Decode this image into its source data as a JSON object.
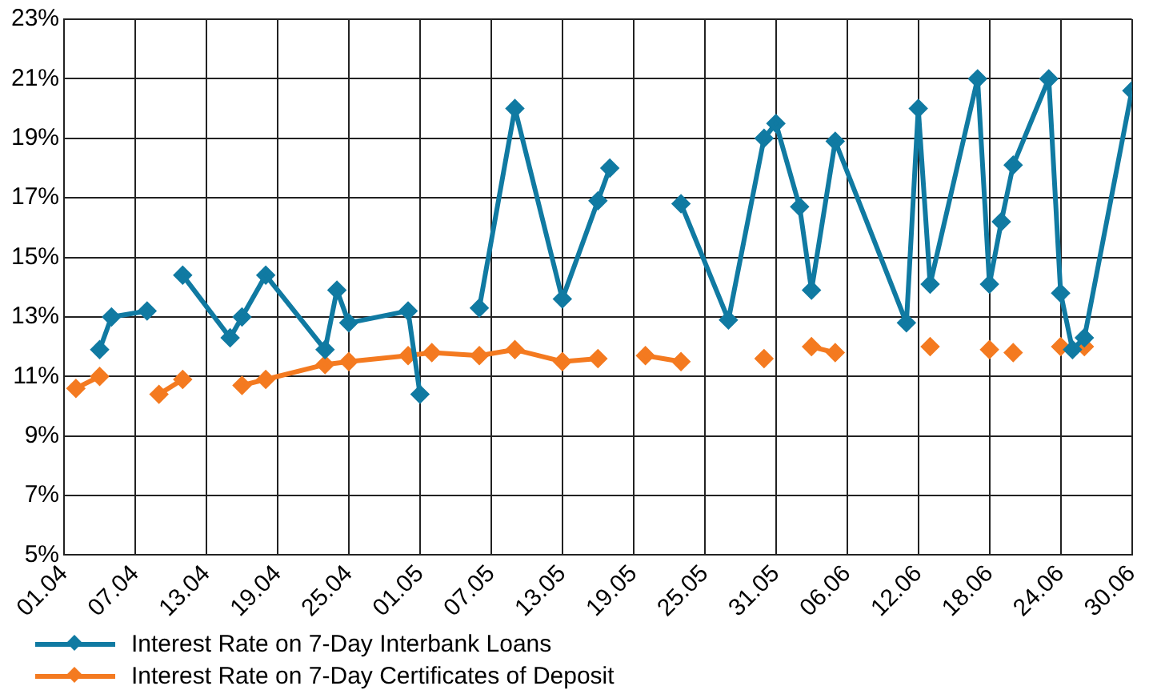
{
  "chart_data": {
    "type": "line",
    "xlim": [
      "--04-01",
      "--06-30"
    ],
    "xticks": [
      {
        "value": "--04-01",
        "label": "01.04"
      },
      {
        "value": "--04-07",
        "label": "07.04"
      },
      {
        "value": "--04-13",
        "label": "13.04"
      },
      {
        "value": "--04-19",
        "label": "19.04"
      },
      {
        "value": "--04-25",
        "label": "25.04"
      },
      {
        "value": "--05-01",
        "label": "01.05"
      },
      {
        "value": "--05-07",
        "label": "07.05"
      },
      {
        "value": "--05-13",
        "label": "13.05"
      },
      {
        "value": "--05-19",
        "label": "19.05"
      },
      {
        "value": "--05-25",
        "label": "25.05"
      },
      {
        "value": "--05-31",
        "label": "31.05"
      },
      {
        "value": "--06-06",
        "label": "06.06"
      },
      {
        "value": "--06-12",
        "label": "12.06"
      },
      {
        "value": "--06-18",
        "label": "18.06"
      },
      {
        "value": "--06-24",
        "label": "24.06"
      },
      {
        "value": "--06-30",
        "label": "30.06"
      }
    ],
    "ylim": [
      5,
      23
    ],
    "yticks": [
      {
        "value": 5,
        "label": "5%"
      },
      {
        "value": 7,
        "label": "7%"
      },
      {
        "value": 9,
        "label": "9%"
      },
      {
        "value": 11,
        "label": "11%"
      },
      {
        "value": 13,
        "label": "13%"
      },
      {
        "value": 15,
        "label": "15%"
      },
      {
        "value": 17,
        "label": "17%"
      },
      {
        "value": 19,
        "label": "19%"
      },
      {
        "value": 21,
        "label": "21%"
      },
      {
        "value": 23,
        "label": "23%"
      }
    ],
    "grid": true,
    "legend": "bottom left",
    "marker": "diamond",
    "line_style": "solid",
    "series": [
      {
        "name": "Interest Rate on 7-Day Interbank Loans",
        "color": "#107aa2",
        "x": [
          "--04-04",
          "--04-05",
          "--04-08",
          "--04-09",
          "--04-11",
          "--04-15",
          "--04-16",
          "--04-18",
          "--04-23",
          "--04-24",
          "--04-25",
          "--04-30",
          "--05-01",
          "--05-03",
          "--05-06",
          "--05-09",
          "--05-13",
          "--05-16",
          "--05-17",
          "--05-20",
          "--05-23",
          "--05-27",
          "--05-30",
          "--05-31",
          "--06-02",
          "--06-03",
          "--06-05",
          "--06-11",
          "--06-12",
          "--06-13",
          "--06-17",
          "--06-18",
          "--06-19",
          "--06-20",
          "--06-23",
          "--06-24",
          "--06-25",
          "--06-26",
          "--06-30"
        ],
        "values": [
          11.9,
          13.0,
          13.2,
          null,
          14.4,
          12.3,
          13.0,
          14.4,
          11.9,
          13.9,
          12.8,
          13.2,
          10.4,
          null,
          13.3,
          20.0,
          13.6,
          16.9,
          18.0,
          null,
          16.8,
          12.9,
          19.0,
          19.5,
          16.7,
          13.9,
          18.9,
          12.8,
          20.0,
          14.1,
          21.0,
          14.1,
          16.2,
          18.1,
          21.0,
          13.8,
          11.9,
          12.3,
          20.6
        ]
      },
      {
        "name": "Interest Rate on 7-Day Certificates of Deposit",
        "color": "#f47a20",
        "x": [
          "--04-02",
          "--04-04",
          "--04-06",
          "--04-09",
          "--04-11",
          "--04-13",
          "--04-16",
          "--04-18",
          "--04-23",
          "--04-25",
          "--04-30",
          "--05-02",
          "--05-06",
          "--05-09",
          "--05-13",
          "--05-16",
          "--05-18",
          "--05-20",
          "--05-23",
          "--05-26",
          "--05-30",
          "--06-01",
          "--06-03",
          "--06-05",
          "--06-08",
          "--06-13",
          "--06-15",
          "--06-18",
          "--06-19",
          "--06-20",
          "--06-22",
          "--06-24",
          "--06-25",
          "--06-26"
        ],
        "values": [
          10.6,
          11.0,
          null,
          10.4,
          10.9,
          null,
          10.7,
          10.9,
          11.4,
          11.5,
          11.7,
          11.8,
          11.7,
          11.9,
          11.5,
          11.6,
          null,
          11.7,
          11.5,
          null,
          11.6,
          null,
          12.0,
          11.8,
          null,
          12.0,
          null,
          11.9,
          null,
          11.8,
          null,
          12.0,
          null,
          12.0
        ]
      }
    ]
  }
}
